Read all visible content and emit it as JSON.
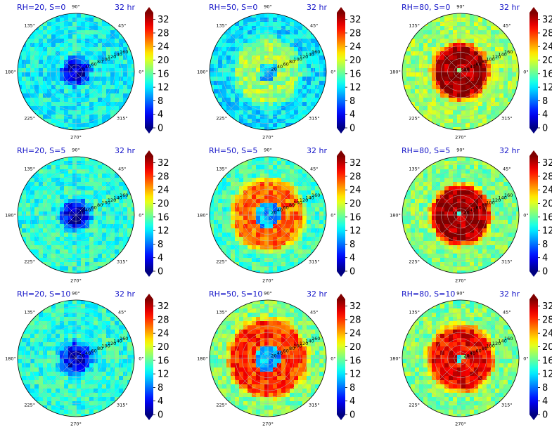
{
  "figure": {
    "colorbar": {
      "ticks": [
        "0",
        "4",
        "8",
        "12",
        "16",
        "20",
        "24",
        "28",
        "32"
      ],
      "vmin": 0,
      "vmax": 34,
      "colormap": "jet",
      "extend": "both"
    },
    "angle_labels": [
      "90°",
      "45°",
      "0°",
      "315°",
      "270°",
      "225°",
      "180°",
      "135°"
    ],
    "radial_labels": [
      "20",
      "40",
      "60",
      "80",
      "100",
      "120",
      "140",
      "160"
    ]
  },
  "chart_data": [
    {
      "type": "heatmap",
      "projection": "polar",
      "title": "RH=20, S=0",
      "time": "32 hr",
      "pattern": "ring",
      "center_value": 2,
      "inner_radius_km": 25,
      "core_value": 2,
      "ring_value": 4,
      "ring_inner_km": 0,
      "ring_outer_km": 30,
      "background_value": 13,
      "noise": 3,
      "shift": [
        0,
        0
      ]
    },
    {
      "type": "heatmap",
      "projection": "polar",
      "title": "RH=50, S=0",
      "time": "32 hr",
      "pattern": "ring",
      "center_value": 11,
      "inner_radius_km": 10,
      "core_value": 11,
      "ring_value": 18,
      "ring_inner_km": 30,
      "ring_outer_km": 90,
      "background_value": 12,
      "noise": 3,
      "shift": [
        0,
        0
      ]
    },
    {
      "type": "heatmap",
      "projection": "polar",
      "title": "RH=80, S=0",
      "time": "32 hr",
      "pattern": "ring",
      "center_value": 14,
      "inner_radius_km": 8,
      "core_value": 33,
      "ring_value": 33,
      "ring_inner_km": 8,
      "ring_outer_km": 75,
      "background_value": 18,
      "noise": 3,
      "shift": [
        0,
        0
      ]
    },
    {
      "type": "heatmap",
      "projection": "polar",
      "title": "RH=20, S=5",
      "time": "32 hr",
      "pattern": "ring",
      "center_value": 2,
      "inner_radius_km": 30,
      "core_value": 2,
      "ring_value": 5,
      "ring_inner_km": 0,
      "ring_outer_km": 35,
      "background_value": 14,
      "noise": 3,
      "shift": [
        0,
        0
      ]
    },
    {
      "type": "heatmap",
      "projection": "polar",
      "title": "RH=50, S=5",
      "time": "32 hr",
      "pattern": "ring",
      "center_value": 10,
      "inner_radius_km": 10,
      "core_value": 10,
      "ring_value": 26,
      "ring_inner_km": 40,
      "ring_outer_km": 100,
      "background_value": 15,
      "noise": 3,
      "shift": [
        0,
        0
      ]
    },
    {
      "type": "heatmap",
      "projection": "polar",
      "title": "RH=80, S=5",
      "time": "32 hr",
      "pattern": "ring",
      "center_value": 14,
      "inner_radius_km": 8,
      "core_value": 33,
      "ring_value": 33,
      "ring_inner_km": 8,
      "ring_outer_km": 80,
      "background_value": 17,
      "noise": 3,
      "shift": [
        0,
        0
      ]
    },
    {
      "type": "heatmap",
      "projection": "polar",
      "title": "RH=20, S=10",
      "time": "32 hr",
      "pattern": "ring",
      "center_value": 3,
      "inner_radius_km": 30,
      "core_value": 3,
      "ring_value": 6,
      "ring_inner_km": 0,
      "ring_outer_km": 40,
      "background_value": 14,
      "noise": 3,
      "shift": [
        0,
        0
      ]
    },
    {
      "type": "heatmap",
      "projection": "polar",
      "title": "RH=50, S=10",
      "time": "32 hr",
      "pattern": "ring",
      "center_value": 10,
      "inner_radius_km": 10,
      "core_value": 10,
      "ring_value": 28,
      "ring_inner_km": 40,
      "ring_outer_km": 110,
      "background_value": 17,
      "noise": 3,
      "shift": [
        0,
        0
      ]
    },
    {
      "type": "heatmap",
      "projection": "polar",
      "title": "RH=80, S=10",
      "time": "32 hr",
      "pattern": "ring",
      "center_value": 14,
      "inner_radius_km": 10,
      "core_value": 30,
      "ring_value": 30,
      "ring_inner_km": 10,
      "ring_outer_km": 90,
      "background_value": 17,
      "noise": 3,
      "shift": [
        0,
        0
      ]
    }
  ]
}
